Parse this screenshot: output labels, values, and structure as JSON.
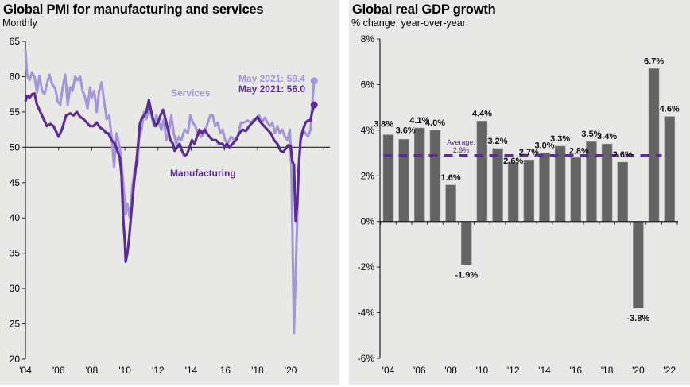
{
  "chart_data": [
    {
      "type": "line",
      "title": "Global PMI for manufacturing and services",
      "subtitle": "Monthly",
      "xlabel": "",
      "ylabel": "",
      "ylim": [
        20,
        65
      ],
      "xlim": [
        2004,
        2022
      ],
      "yticks": [
        20,
        25,
        30,
        35,
        40,
        45,
        50,
        55,
        60,
        65
      ],
      "ytick_labels": [
        "20",
        "25",
        "30",
        "35",
        "40",
        "45",
        "50",
        "55",
        "60",
        "65"
      ],
      "xticks": [
        2004,
        2006,
        2008,
        2010,
        2012,
        2014,
        2016,
        2018,
        2020
      ],
      "xtick_labels": [
        "'04",
        "'06",
        "'08",
        "'10",
        "'12",
        "'14",
        "'16",
        "'18",
        "'20"
      ],
      "reference_line": 50,
      "grid": false,
      "series": [
        {
          "name": "Services",
          "color": "#a395d6",
          "label_text": "Services",
          "end_label": "May 2021: 59.4",
          "end_value": 59.4,
          "points": [
            [
              2004.0,
              63.8
            ],
            [
              2004.1,
              60.2
            ],
            [
              2004.25,
              59.5
            ],
            [
              2004.4,
              60.6
            ],
            [
              2004.55,
              59.9
            ],
            [
              2004.7,
              57.8
            ],
            [
              2004.85,
              60.1
            ],
            [
              2005.0,
              58.0
            ],
            [
              2005.15,
              57.5
            ],
            [
              2005.3,
              59.0
            ],
            [
              2005.45,
              60.3
            ],
            [
              2005.6,
              59.0
            ],
            [
              2005.8,
              58.3
            ],
            [
              2005.95,
              56.5
            ],
            [
              2006.1,
              56.0
            ],
            [
              2006.25,
              58.5
            ],
            [
              2006.4,
              60.3
            ],
            [
              2006.55,
              56.0
            ],
            [
              2006.7,
              58.5
            ],
            [
              2006.85,
              58.0
            ],
            [
              2007.0,
              60.0
            ],
            [
              2007.15,
              59.5
            ],
            [
              2007.3,
              60.0
            ],
            [
              2007.45,
              58.0
            ],
            [
              2007.6,
              57.0
            ],
            [
              2007.75,
              55.5
            ],
            [
              2007.9,
              58.5
            ],
            [
              2008.0,
              57.0
            ],
            [
              2008.15,
              58.0
            ],
            [
              2008.3,
              55.0
            ],
            [
              2008.45,
              58.0
            ],
            [
              2008.6,
              59.2
            ],
            [
              2008.75,
              56.5
            ],
            [
              2008.9,
              54.0
            ],
            [
              2009.05,
              54.5
            ],
            [
              2009.2,
              51.5
            ],
            [
              2009.35,
              47.2
            ],
            [
              2009.5,
              52.0
            ],
            [
              2009.6,
              51.0
            ],
            [
              2009.75,
              49.0
            ],
            [
              2009.9,
              45.0
            ],
            [
              2010.05,
              40.5
            ],
            [
              2010.15,
              42.0
            ],
            [
              2010.3,
              40.0
            ],
            [
              2010.45,
              44.5
            ],
            [
              2010.6,
              47.0
            ],
            [
              2010.75,
              47.5
            ],
            [
              2010.85,
              51.0
            ],
            [
              2011.0,
              52.5
            ],
            [
              2011.15,
              55.0
            ],
            [
              2011.3,
              54.0
            ],
            [
              2011.45,
              55.5
            ],
            [
              2011.6,
              54.5
            ],
            [
              2011.75,
              53.0
            ],
            [
              2011.9,
              54.5
            ],
            [
              2012.05,
              53.5
            ],
            [
              2012.2,
              52.5
            ],
            [
              2012.35,
              54.0
            ],
            [
              2012.5,
              51.0
            ],
            [
              2012.65,
              52.0
            ],
            [
              2012.8,
              54.5
            ],
            [
              2012.95,
              52.0
            ],
            [
              2013.1,
              50.5
            ],
            [
              2013.25,
              51.5
            ],
            [
              2013.4,
              51.0
            ],
            [
              2013.6,
              52.5
            ],
            [
              2013.8,
              52.0
            ],
            [
              2013.95,
              54.5
            ],
            [
              2014.1,
              53.5
            ],
            [
              2014.25,
              53.0
            ],
            [
              2014.4,
              52.0
            ],
            [
              2014.6,
              51.5
            ],
            [
              2014.8,
              52.0
            ],
            [
              2015.0,
              53.5
            ],
            [
              2015.15,
              54.5
            ],
            [
              2015.3,
              54.5
            ],
            [
              2015.45,
              53.0
            ],
            [
              2015.6,
              53.5
            ],
            [
              2015.75,
              52.0
            ],
            [
              2015.9,
              52.5
            ],
            [
              2016.05,
              51.0
            ],
            [
              2016.2,
              50.5
            ],
            [
              2016.4,
              51.5
            ],
            [
              2016.6,
              51.0
            ],
            [
              2016.8,
              51.5
            ],
            [
              2017.0,
              53.5
            ],
            [
              2017.2,
              53.5
            ],
            [
              2017.4,
              53.8
            ],
            [
              2017.6,
              53.5
            ],
            [
              2017.8,
              54.0
            ],
            [
              2018.0,
              54.0
            ],
            [
              2018.1,
              54.5
            ],
            [
              2018.25,
              53.5
            ],
            [
              2018.45,
              54.2
            ],
            [
              2018.6,
              53.5
            ],
            [
              2018.75,
              53.0
            ],
            [
              2018.9,
              53.5
            ],
            [
              2019.05,
              52.0
            ],
            [
              2019.2,
              53.0
            ],
            [
              2019.35,
              52.0
            ],
            [
              2019.5,
              52.5
            ],
            [
              2019.65,
              51.5
            ],
            [
              2019.8,
              51.0
            ],
            [
              2019.95,
              52.5
            ],
            [
              2020.05,
              47.0
            ],
            [
              2020.2,
              23.7
            ],
            [
              2020.35,
              36.0
            ],
            [
              2020.5,
              48.0
            ],
            [
              2020.6,
              51.5
            ],
            [
              2020.75,
              52.5
            ],
            [
              2020.9,
              52.0
            ],
            [
              2021.05,
              51.5
            ],
            [
              2021.2,
              52.5
            ],
            [
              2021.3,
              56.0
            ],
            [
              2021.42,
              59.4
            ]
          ]
        },
        {
          "name": "Manufacturing",
          "color": "#5c2d91",
          "label_text": "Manufacturing",
          "end_label": "May 2021: 56.0",
          "end_value": 56.0,
          "points": [
            [
              2004.0,
              56.5
            ],
            [
              2004.1,
              57.3
            ],
            [
              2004.25,
              57.0
            ],
            [
              2004.4,
              57.5
            ],
            [
              2004.55,
              57.6
            ],
            [
              2004.7,
              56.0
            ],
            [
              2004.9,
              55.0
            ],
            [
              2005.1,
              54.0
            ],
            [
              2005.3,
              53.0
            ],
            [
              2005.5,
              53.3
            ],
            [
              2005.7,
              53.0
            ],
            [
              2005.9,
              52.0
            ],
            [
              2006.0,
              51.5
            ],
            [
              2006.2,
              52.5
            ],
            [
              2006.45,
              54.5
            ],
            [
              2006.7,
              54.8
            ],
            [
              2006.9,
              54.5
            ],
            [
              2007.1,
              55.0
            ],
            [
              2007.3,
              54.3
            ],
            [
              2007.5,
              54.0
            ],
            [
              2007.7,
              53.5
            ],
            [
              2007.9,
              53.0
            ],
            [
              2008.1,
              53.0
            ],
            [
              2008.3,
              53.5
            ],
            [
              2008.5,
              52.8
            ],
            [
              2008.7,
              52.5
            ],
            [
              2008.9,
              52.0
            ],
            [
              2009.0,
              52.0
            ],
            [
              2009.2,
              51.0
            ],
            [
              2009.4,
              50.5
            ],
            [
              2009.55,
              49.5
            ],
            [
              2009.7,
              48.5
            ],
            [
              2009.8,
              46.0
            ],
            [
              2009.9,
              40.0
            ],
            [
              2010.0,
              36.5
            ],
            [
              2010.05,
              33.8
            ],
            [
              2010.15,
              35.0
            ],
            [
              2010.25,
              37.0
            ],
            [
              2010.4,
              41.0
            ],
            [
              2010.55,
              45.0
            ],
            [
              2010.7,
              48.0
            ],
            [
              2010.8,
              50.5
            ],
            [
              2010.9,
              53.3
            ],
            [
              2011.0,
              54.0
            ],
            [
              2011.15,
              54.5
            ],
            [
              2011.3,
              55.0
            ],
            [
              2011.45,
              56.7
            ],
            [
              2011.55,
              55.5
            ],
            [
              2011.7,
              54.0
            ],
            [
              2011.85,
              53.0
            ],
            [
              2012.0,
              53.5
            ],
            [
              2012.15,
              54.5
            ],
            [
              2012.3,
              55.3
            ],
            [
              2012.45,
              54.0
            ],
            [
              2012.6,
              52.5
            ],
            [
              2012.75,
              51.0
            ],
            [
              2012.9,
              50.5
            ],
            [
              2013.0,
              49.5
            ],
            [
              2013.15,
              50.0
            ],
            [
              2013.3,
              50.5
            ],
            [
              2013.45,
              49.5
            ],
            [
              2013.6,
              48.8
            ],
            [
              2013.75,
              49.0
            ],
            [
              2013.9,
              50.0
            ],
            [
              2014.05,
              51.0
            ],
            [
              2014.2,
              50.5
            ],
            [
              2014.35,
              51.5
            ],
            [
              2014.5,
              52.5
            ],
            [
              2014.65,
              52.0
            ],
            [
              2014.8,
              52.5
            ],
            [
              2014.95,
              52.0
            ],
            [
              2015.1,
              51.5
            ],
            [
              2015.3,
              51.0
            ],
            [
              2015.5,
              51.0
            ],
            [
              2015.7,
              50.5
            ],
            [
              2015.9,
              50.5
            ],
            [
              2016.0,
              50.0
            ],
            [
              2016.15,
              50.5
            ],
            [
              2016.3,
              50.0
            ],
            [
              2016.5,
              50.5
            ],
            [
              2016.7,
              51.0
            ],
            [
              2016.9,
              52.0
            ],
            [
              2017.1,
              52.5
            ],
            [
              2017.3,
              52.3
            ],
            [
              2017.5,
              53.0
            ],
            [
              2017.7,
              53.5
            ],
            [
              2017.9,
              54.0
            ],
            [
              2018.0,
              54.3
            ],
            [
              2018.2,
              53.5
            ],
            [
              2018.4,
              53.0
            ],
            [
              2018.6,
              52.5
            ],
            [
              2018.8,
              52.0
            ],
            [
              2019.0,
              51.0
            ],
            [
              2019.2,
              50.5
            ],
            [
              2019.4,
              49.5
            ],
            [
              2019.55,
              49.3
            ],
            [
              2019.7,
              49.8
            ],
            [
              2019.85,
              50.3
            ],
            [
              2020.0,
              50.2
            ],
            [
              2020.1,
              48.0
            ],
            [
              2020.2,
              47.5
            ],
            [
              2020.3,
              39.6
            ],
            [
              2020.4,
              42.0
            ],
            [
              2020.5,
              47.5
            ],
            [
              2020.6,
              51.0
            ],
            [
              2020.75,
              52.5
            ],
            [
              2020.9,
              53.5
            ],
            [
              2021.05,
              53.8
            ],
            [
              2021.2,
              53.8
            ],
            [
              2021.3,
              55.0
            ],
            [
              2021.42,
              56.0
            ]
          ]
        }
      ]
    },
    {
      "type": "bar",
      "title": "Global real GDP growth",
      "subtitle": "% change, year-over-year",
      "xlabel": "",
      "ylabel": "",
      "ylim": [
        -6,
        8
      ],
      "yticks": [
        -6,
        -4,
        -2,
        0,
        2,
        4,
        6,
        8
      ],
      "ytick_labels": [
        "-6%",
        "-4%",
        "-2%",
        "0%",
        "2%",
        "4%",
        "6%",
        "8%"
      ],
      "categories": [
        "2004",
        "2005",
        "2006",
        "2007",
        "2008",
        "2009",
        "2010",
        "2011",
        "2012",
        "2013",
        "2014",
        "2015",
        "2016",
        "2017",
        "2018",
        "2019",
        "2020",
        "2021",
        "2022"
      ],
      "xtick_labels": [
        "'04",
        "",
        "'06",
        "",
        "'08",
        "",
        "'10",
        "",
        "'12",
        "",
        "'14",
        "",
        "'16",
        "",
        "'18",
        "",
        "'20",
        "",
        "'22"
      ],
      "values": [
        3.8,
        3.6,
        4.1,
        4.0,
        1.6,
        -1.9,
        4.4,
        3.2,
        2.6,
        2.7,
        3.0,
        3.3,
        2.8,
        3.5,
        3.4,
        2.6,
        -3.8,
        6.7,
        4.6
      ],
      "data_labels": [
        "3.8%",
        "3.6%",
        "4.1%",
        "4.0%",
        "1.6%",
        "-1.9%",
        "4.4%",
        "3.2%",
        "2.6%",
        "2.7%",
        "3.0%",
        "3.3%",
        "2.8%",
        "3.5%",
        "3.4%",
        "2.6%",
        "-3.8%",
        "6.7%",
        "4.6%"
      ],
      "bar_color": "#646464",
      "average": {
        "value": 2.9,
        "label_line1": "Average:",
        "label_line2": "2.9%",
        "color": "#5c2d91"
      },
      "grid": false
    }
  ]
}
